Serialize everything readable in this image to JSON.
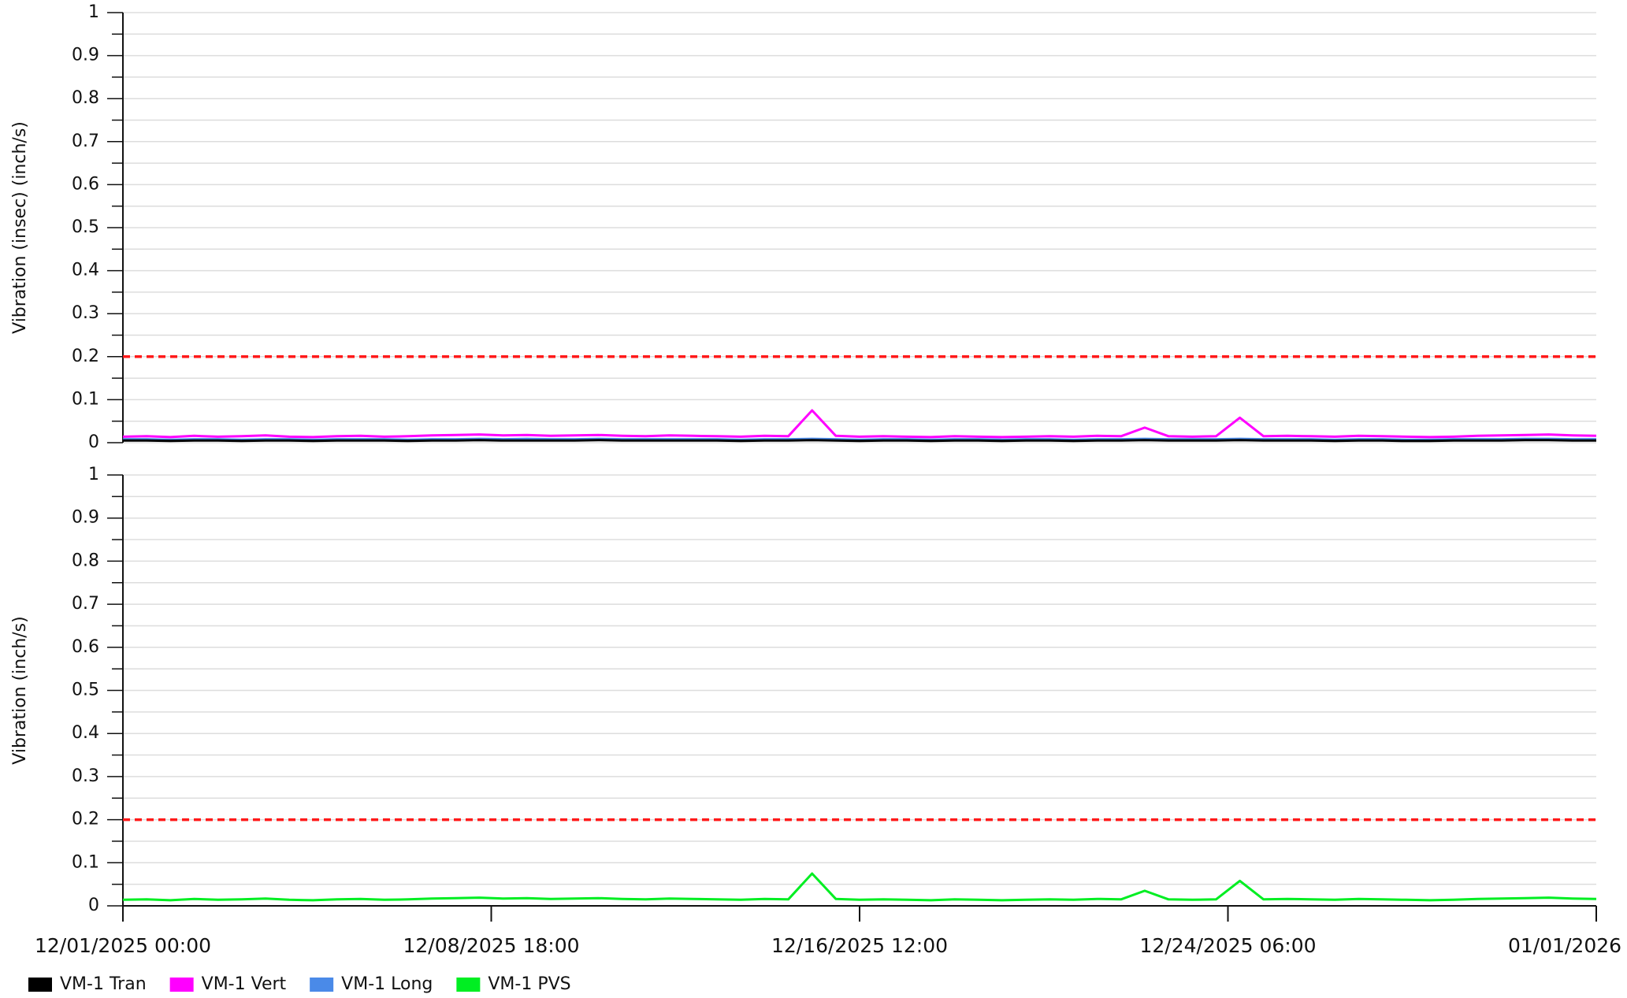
{
  "chart_data": [
    {
      "type": "line",
      "y_label": "Vibration (insec) (inch/s)",
      "ylim": [
        0,
        1
      ],
      "yticks": [
        0,
        0.1,
        0.2,
        0.3,
        0.4,
        0.5,
        0.6,
        0.7,
        0.8,
        0.9,
        1
      ],
      "minor_yticks": [
        0.05,
        0.15,
        0.25,
        0.35,
        0.45,
        0.55,
        0.65,
        0.75,
        0.85,
        0.95
      ],
      "grid": true,
      "threshold": 0.2,
      "threshold_color": "#ff1a1a",
      "xlim": [
        "12/01/2025 00:00",
        "01/01/2026 00:00"
      ],
      "x": [
        "12/01/2025 00:00",
        "12/01/2025 12:00",
        "12/02/2025 00:00",
        "12/02/2025 12:00",
        "12/03/2025 00:00",
        "12/03/2025 12:00",
        "12/04/2025 00:00",
        "12/04/2025 12:00",
        "12/05/2025 00:00",
        "12/05/2025 12:00",
        "12/06/2025 00:00",
        "12/06/2025 12:00",
        "12/07/2025 00:00",
        "12/07/2025 12:00",
        "12/08/2025 00:00",
        "12/08/2025 12:00",
        "12/09/2025 00:00",
        "12/09/2025 12:00",
        "12/10/2025 00:00",
        "12/10/2025 12:00",
        "12/11/2025 00:00",
        "12/11/2025 12:00",
        "12/12/2025 00:00",
        "12/12/2025 12:00",
        "12/13/2025 00:00",
        "12/13/2025 12:00",
        "12/14/2025 00:00",
        "12/14/2025 12:00",
        "12/15/2025 00:00",
        "12/15/2025 12:00",
        "12/16/2025 00:00",
        "12/16/2025 12:00",
        "12/17/2025 00:00",
        "12/17/2025 12:00",
        "12/18/2025 00:00",
        "12/18/2025 12:00",
        "12/19/2025 00:00",
        "12/19/2025 12:00",
        "12/20/2025 00:00",
        "12/20/2025 12:00",
        "12/21/2025 00:00",
        "12/21/2025 12:00",
        "12/22/2025 00:00",
        "12/22/2025 12:00",
        "12/23/2025 00:00",
        "12/23/2025 12:00",
        "12/24/2025 00:00",
        "12/24/2025 12:00",
        "12/25/2025 00:00",
        "12/25/2025 12:00",
        "12/26/2025 00:00",
        "12/26/2025 12:00",
        "12/27/2025 00:00",
        "12/27/2025 12:00",
        "12/28/2025 00:00",
        "12/28/2025 12:00",
        "12/29/2025 00:00",
        "12/29/2025 12:00",
        "12/30/2025 00:00",
        "12/30/2025 12:00",
        "12/31/2025 00:00",
        "12/31/2025 12:00",
        "01/01/2026 00:00"
      ],
      "series": [
        {
          "name": "VM-1 Tran",
          "color": "#000000",
          "values": [
            0.005,
            0.005,
            0.004,
            0.005,
            0.005,
            0.004,
            0.005,
            0.005,
            0.004,
            0.005,
            0.005,
            0.005,
            0.004,
            0.005,
            0.005,
            0.006,
            0.005,
            0.005,
            0.005,
            0.005,
            0.006,
            0.005,
            0.005,
            0.005,
            0.005,
            0.005,
            0.004,
            0.005,
            0.005,
            0.006,
            0.005,
            0.004,
            0.005,
            0.005,
            0.004,
            0.005,
            0.005,
            0.004,
            0.005,
            0.005,
            0.004,
            0.005,
            0.005,
            0.006,
            0.005,
            0.005,
            0.005,
            0.006,
            0.005,
            0.005,
            0.005,
            0.004,
            0.005,
            0.005,
            0.004,
            0.004,
            0.005,
            0.005,
            0.005,
            0.006,
            0.006,
            0.005,
            0.005
          ]
        },
        {
          "name": "VM-1 Vert",
          "color": "#ff00ff",
          "values": [
            0.014,
            0.015,
            0.013,
            0.016,
            0.014,
            0.015,
            0.017,
            0.014,
            0.013,
            0.015,
            0.016,
            0.014,
            0.015,
            0.017,
            0.018,
            0.019,
            0.017,
            0.018,
            0.016,
            0.017,
            0.018,
            0.016,
            0.015,
            0.017,
            0.016,
            0.015,
            0.014,
            0.016,
            0.015,
            0.075,
            0.016,
            0.014,
            0.015,
            0.014,
            0.013,
            0.015,
            0.014,
            0.013,
            0.014,
            0.015,
            0.014,
            0.016,
            0.015,
            0.035,
            0.015,
            0.014,
            0.015,
            0.058,
            0.015,
            0.016,
            0.015,
            0.014,
            0.016,
            0.015,
            0.014,
            0.013,
            0.014,
            0.016,
            0.017,
            0.018,
            0.019,
            0.017,
            0.016
          ]
        },
        {
          "name": "VM-1 Long",
          "color": "#4a8ae8",
          "values": [
            0.008,
            0.008,
            0.007,
            0.008,
            0.008,
            0.007,
            0.008,
            0.008,
            0.007,
            0.008,
            0.008,
            0.008,
            0.007,
            0.008,
            0.008,
            0.009,
            0.008,
            0.009,
            0.008,
            0.008,
            0.009,
            0.008,
            0.008,
            0.008,
            0.008,
            0.008,
            0.007,
            0.008,
            0.008,
            0.009,
            0.008,
            0.007,
            0.008,
            0.008,
            0.007,
            0.008,
            0.008,
            0.007,
            0.008,
            0.008,
            0.007,
            0.008,
            0.008,
            0.009,
            0.008,
            0.008,
            0.008,
            0.009,
            0.008,
            0.008,
            0.008,
            0.007,
            0.008,
            0.008,
            0.007,
            0.007,
            0.008,
            0.008,
            0.008,
            0.009,
            0.009,
            0.008,
            0.008
          ]
        }
      ]
    },
    {
      "type": "line",
      "y_label": "Vibration (inch/s)",
      "ylim": [
        0,
        1
      ],
      "yticks": [
        0,
        0.1,
        0.2,
        0.3,
        0.4,
        0.5,
        0.6,
        0.7,
        0.8,
        0.9,
        1
      ],
      "minor_yticks": [
        0.05,
        0.15,
        0.25,
        0.35,
        0.45,
        0.55,
        0.65,
        0.75,
        0.85,
        0.95
      ],
      "grid": true,
      "threshold": 0.2,
      "threshold_color": "#ff1a1a",
      "legend": "bottom-left",
      "xlim": [
        "12/01/2025 00:00",
        "01/01/2026 00:00"
      ],
      "xticks": [
        "12/01/2025 00:00",
        "12/08/2025 18:00",
        "12/16/2025 12:00",
        "12/24/2025 06:00",
        "01/01/2026 00:00"
      ],
      "x": [
        "12/01/2025 00:00",
        "12/01/2025 12:00",
        "12/02/2025 00:00",
        "12/02/2025 12:00",
        "12/03/2025 00:00",
        "12/03/2025 12:00",
        "12/04/2025 00:00",
        "12/04/2025 12:00",
        "12/05/2025 00:00",
        "12/05/2025 12:00",
        "12/06/2025 00:00",
        "12/06/2025 12:00",
        "12/07/2025 00:00",
        "12/07/2025 12:00",
        "12/08/2025 00:00",
        "12/08/2025 12:00",
        "12/09/2025 00:00",
        "12/09/2025 12:00",
        "12/10/2025 00:00",
        "12/10/2025 12:00",
        "12/11/2025 00:00",
        "12/11/2025 12:00",
        "12/12/2025 00:00",
        "12/12/2025 12:00",
        "12/13/2025 00:00",
        "12/13/2025 12:00",
        "12/14/2025 00:00",
        "12/14/2025 12:00",
        "12/15/2025 00:00",
        "12/15/2025 12:00",
        "12/16/2025 00:00",
        "12/16/2025 12:00",
        "12/17/2025 00:00",
        "12/17/2025 12:00",
        "12/18/2025 00:00",
        "12/18/2025 12:00",
        "12/19/2025 00:00",
        "12/19/2025 12:00",
        "12/20/2025 00:00",
        "12/20/2025 12:00",
        "12/21/2025 00:00",
        "12/21/2025 12:00",
        "12/22/2025 00:00",
        "12/22/2025 12:00",
        "12/23/2025 00:00",
        "12/23/2025 12:00",
        "12/24/2025 00:00",
        "12/24/2025 12:00",
        "12/25/2025 00:00",
        "12/25/2025 12:00",
        "12/26/2025 00:00",
        "12/26/2025 12:00",
        "12/27/2025 00:00",
        "12/27/2025 12:00",
        "12/28/2025 00:00",
        "12/28/2025 12:00",
        "12/29/2025 00:00",
        "12/29/2025 12:00",
        "12/30/2025 00:00",
        "12/30/2025 12:00",
        "12/31/2025 00:00",
        "12/31/2025 12:00",
        "01/01/2026 00:00"
      ],
      "series": [
        {
          "name": "VM-1 PVS",
          "color": "#00ee22",
          "values": [
            0.014,
            0.015,
            0.013,
            0.016,
            0.014,
            0.015,
            0.017,
            0.014,
            0.013,
            0.015,
            0.016,
            0.014,
            0.015,
            0.017,
            0.018,
            0.019,
            0.017,
            0.018,
            0.016,
            0.017,
            0.018,
            0.016,
            0.015,
            0.017,
            0.016,
            0.015,
            0.014,
            0.016,
            0.015,
            0.075,
            0.016,
            0.014,
            0.015,
            0.014,
            0.013,
            0.015,
            0.014,
            0.013,
            0.014,
            0.015,
            0.014,
            0.016,
            0.015,
            0.035,
            0.015,
            0.014,
            0.015,
            0.058,
            0.015,
            0.016,
            0.015,
            0.014,
            0.016,
            0.015,
            0.014,
            0.013,
            0.014,
            0.016,
            0.017,
            0.018,
            0.019,
            0.017,
            0.016
          ]
        }
      ]
    }
  ]
}
